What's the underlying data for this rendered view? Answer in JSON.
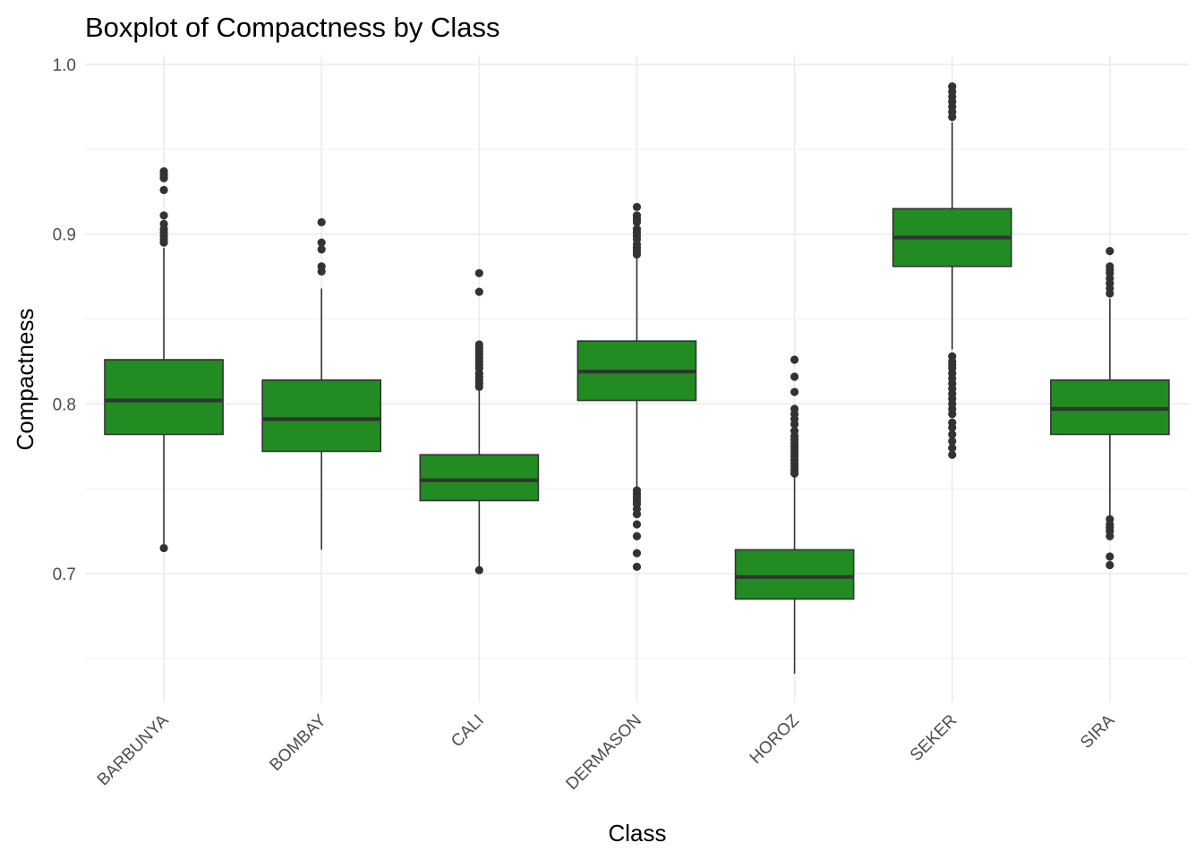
{
  "chart_data": {
    "type": "boxplot",
    "title": "Boxplot of Compactness by Class",
    "xlabel": "Class",
    "ylabel": "Compactness",
    "ylim": [
      0.64,
      1.0
    ],
    "yticks": [
      0.7,
      0.8,
      0.9,
      1.0
    ],
    "ytick_labels": [
      "0.7",
      "0.8",
      "0.9",
      "1.0"
    ],
    "grid": true,
    "box_color": "#228B22",
    "line_color": "#333333",
    "categories": [
      "BARBUNYA",
      "BOMBAY",
      "CALI",
      "DERMASON",
      "HOROZ",
      "SEKER",
      "SIRA"
    ],
    "boxes": [
      {
        "name": "BARBUNYA",
        "whisker_low": 0.715,
        "q1": 0.782,
        "median": 0.802,
        "q3": 0.826,
        "whisker_high": 0.892,
        "outliers": [
          0.937,
          0.935,
          0.933,
          0.926,
          0.911,
          0.906,
          0.903,
          0.901,
          0.899,
          0.897,
          0.895,
          0.715
        ]
      },
      {
        "name": "BOMBAY",
        "whisker_low": 0.714,
        "q1": 0.772,
        "median": 0.791,
        "q3": 0.814,
        "whisker_high": 0.868,
        "outliers": [
          0.907,
          0.895,
          0.891,
          0.881,
          0.878
        ]
      },
      {
        "name": "CALI",
        "whisker_low": 0.702,
        "q1": 0.743,
        "median": 0.755,
        "q3": 0.77,
        "whisker_high": 0.808,
        "outliers": [
          0.877,
          0.866,
          0.835,
          0.833,
          0.831,
          0.829,
          0.827,
          0.825,
          0.823,
          0.821,
          0.818,
          0.816,
          0.814,
          0.812,
          0.81,
          0.702
        ]
      },
      {
        "name": "DERMASON",
        "whisker_low": 0.751,
        "q1": 0.802,
        "median": 0.819,
        "q3": 0.837,
        "whisker_high": 0.887,
        "outliers": [
          0.916,
          0.911,
          0.909,
          0.907,
          0.903,
          0.901,
          0.899,
          0.897,
          0.894,
          0.892,
          0.89,
          0.888,
          0.749,
          0.747,
          0.745,
          0.743,
          0.741,
          0.738,
          0.735,
          0.729,
          0.722,
          0.712,
          0.704
        ]
      },
      {
        "name": "HOROZ",
        "whisker_low": 0.641,
        "q1": 0.685,
        "median": 0.698,
        "q3": 0.714,
        "whisker_high": 0.757,
        "outliers": [
          0.826,
          0.816,
          0.807,
          0.797,
          0.794,
          0.791,
          0.788,
          0.784,
          0.781,
          0.779,
          0.777,
          0.775,
          0.773,
          0.771,
          0.769,
          0.767,
          0.765,
          0.763,
          0.761,
          0.759
        ]
      },
      {
        "name": "SEKER",
        "whisker_low": 0.832,
        "q1": 0.881,
        "median": 0.898,
        "q3": 0.915,
        "whisker_high": 0.966,
        "outliers": [
          0.987,
          0.984,
          0.981,
          0.978,
          0.975,
          0.972,
          0.969,
          0.828,
          0.825,
          0.823,
          0.821,
          0.818,
          0.815,
          0.812,
          0.809,
          0.806,
          0.803,
          0.8,
          0.797,
          0.794,
          0.789,
          0.786,
          0.782,
          0.778,
          0.774,
          0.77
        ]
      },
      {
        "name": "SIRA",
        "whisker_low": 0.733,
        "q1": 0.782,
        "median": 0.797,
        "q3": 0.814,
        "whisker_high": 0.862,
        "outliers": [
          0.89,
          0.881,
          0.879,
          0.877,
          0.874,
          0.871,
          0.868,
          0.865,
          0.732,
          0.729,
          0.727,
          0.725,
          0.722,
          0.71,
          0.705
        ]
      }
    ]
  }
}
